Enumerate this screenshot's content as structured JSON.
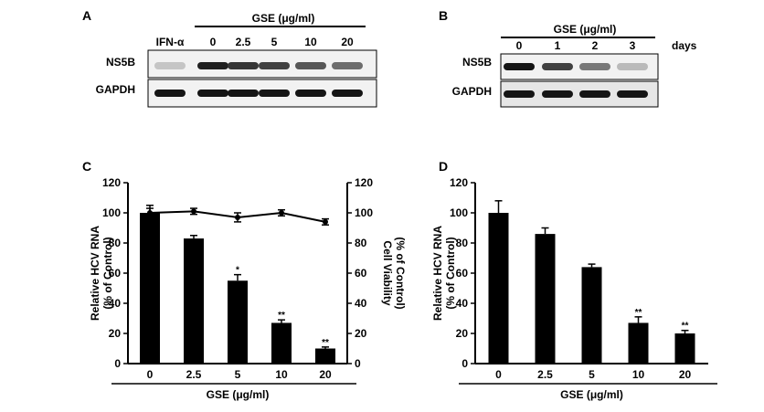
{
  "panels": {
    "A": {
      "letter": "A",
      "treatment_header": "GSE (μg/ml)",
      "control_lane": "IFN-α",
      "lanes": [
        "0",
        "2.5",
        "5",
        "10",
        "20"
      ],
      "rows": [
        "NS5B",
        "GAPDH"
      ],
      "band_intensity": {
        "NS5B": [
          0.15,
          0.9,
          0.8,
          0.75,
          0.65,
          0.55
        ],
        "GAPDH": [
          0.95,
          0.95,
          0.95,
          0.95,
          0.95,
          0.95
        ]
      }
    },
    "B": {
      "letter": "B",
      "treatment_header": "GSE (μg/ml)",
      "lanes": [
        "0",
        "1",
        "2",
        "3"
      ],
      "lane_unit": "days",
      "rows": [
        "NS5B",
        "GAPDH"
      ],
      "band_intensity": {
        "NS5B": [
          0.95,
          0.75,
          0.5,
          0.2
        ],
        "GAPDH": [
          0.95,
          0.95,
          0.95,
          0.95
        ]
      }
    },
    "C": {
      "letter": "C"
    },
    "D": {
      "letter": "D"
    }
  },
  "colors": {
    "bar": "#000000",
    "axis": "#000000",
    "blot_bg": "#f2f2f2",
    "band": "#111111"
  },
  "chart_data": [
    {
      "panel": "C",
      "type": "bar",
      "categories": [
        "0",
        "2.5",
        "5",
        "10",
        "20"
      ],
      "series": [
        {
          "name": "Relative HCV RNA",
          "values": [
            100,
            83,
            55,
            27,
            10
          ],
          "errors": [
            5,
            2,
            4,
            2,
            1
          ]
        },
        {
          "name": "Cell Viability",
          "type": "line",
          "values": [
            100,
            101,
            97,
            100,
            94
          ],
          "errors": [
            3,
            2,
            3,
            2,
            2
          ],
          "axis": "right"
        }
      ],
      "significance": [
        "",
        "",
        "*",
        "**",
        "**"
      ],
      "xlabel": "GSE (μg/ml)",
      "ylabel": "Relative HCV RNA\n(% of Control)",
      "y2label": "Cell Viability\n(% of Control)",
      "ylim": [
        0,
        120
      ],
      "y2lim": [
        0,
        120
      ],
      "yticks": [
        0,
        20,
        40,
        60,
        80,
        100,
        120
      ],
      "grid": false
    },
    {
      "panel": "D",
      "type": "bar",
      "categories": [
        "0",
        "2.5",
        "5",
        "10",
        "20"
      ],
      "series": [
        {
          "name": "Relative HCV RNA",
          "values": [
            100,
            86,
            64,
            27,
            20
          ],
          "errors": [
            8,
            4,
            2,
            4,
            2
          ]
        }
      ],
      "significance": [
        "",
        "",
        "",
        "**",
        "**"
      ],
      "xlabel": "GSE (μg/ml)",
      "ylabel": "Relative HCV RNA\n(% of Control)",
      "ylim": [
        0,
        120
      ],
      "yticks": [
        0,
        20,
        40,
        60,
        80,
        100,
        120
      ],
      "grid": false
    }
  ]
}
